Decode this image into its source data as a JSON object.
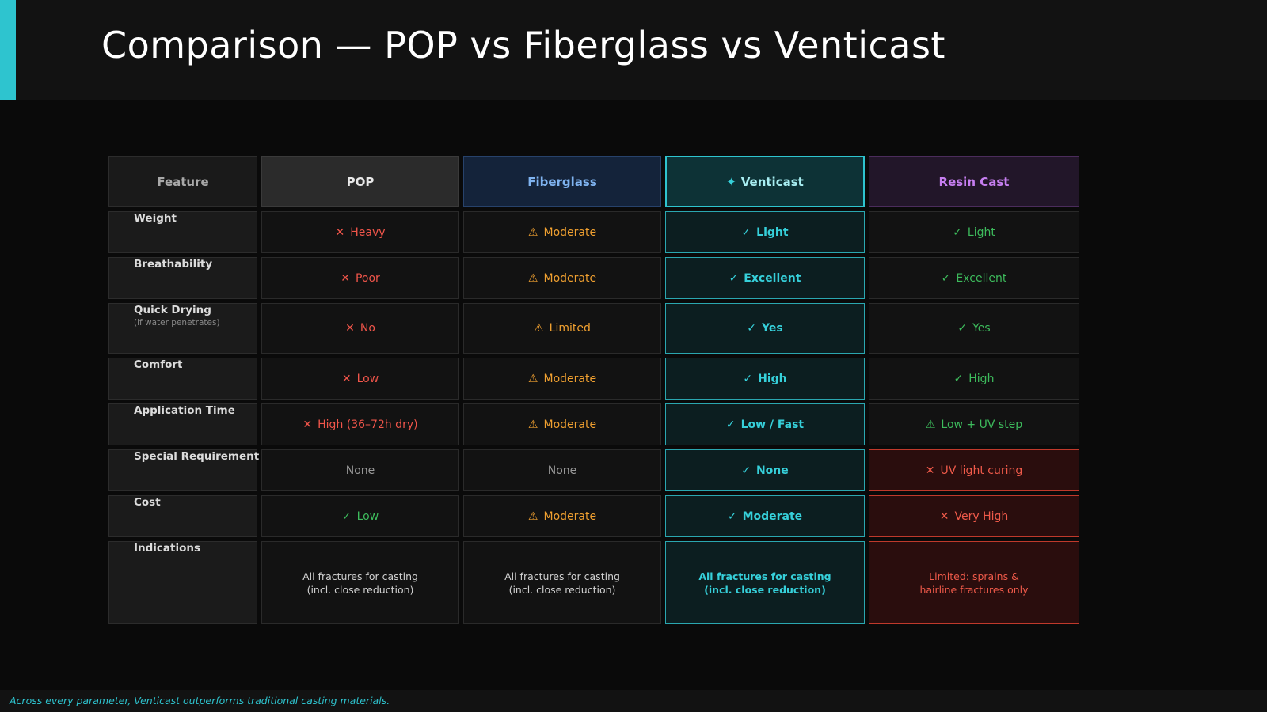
{
  "title": "Comparison — POP vs Fiberglass vs Venticast",
  "footer": "Across every parameter, Venticast outperforms traditional casting materials.",
  "colors": {
    "accent": "#2ec4cf",
    "bad": "#f0554a",
    "warn": "#f0a030",
    "good": "#3dbb5c",
    "venticast": "#36d0da"
  },
  "columns": {
    "feature": "Feature",
    "pop": "POP",
    "fiberglass": "Fiberglass",
    "venticast": "Venticast",
    "resin": "Resin Cast"
  },
  "symbols": {
    "bad": "✕",
    "warn": "⚠",
    "good": "✓",
    "sparkle": "✦"
  },
  "rows": [
    {
      "feature": "Weight",
      "pop": "Heavy",
      "fiberglass": "Moderate",
      "venticast": "Light",
      "resin": "Light"
    },
    {
      "feature": "Breathability",
      "pop": "Poor",
      "fiberglass": "Moderate",
      "venticast": "Excellent",
      "resin": "Excellent"
    },
    {
      "feature": "Quick Drying",
      "feature_sub": "(if water penetrates)",
      "pop": "No",
      "fiberglass": "Limited",
      "venticast": "Yes",
      "resin": "Yes"
    },
    {
      "feature": "Comfort",
      "pop": "Low",
      "fiberglass": "Moderate",
      "venticast": "High",
      "resin": "High"
    },
    {
      "feature": "Application Time",
      "pop": "High (36–72h dry)",
      "fiberglass": "Moderate",
      "venticast": "Low / Fast",
      "resin": "Low + UV step"
    },
    {
      "feature": "Special Requirement",
      "pop": "None",
      "fiberglass": "None",
      "venticast": "None",
      "resin": "UV light curing"
    },
    {
      "feature": "Cost",
      "pop": "Low",
      "fiberglass": "Moderate",
      "venticast": "Moderate",
      "resin": "Very High"
    },
    {
      "feature": "Indications",
      "pop_l1": "All fractures for casting",
      "pop_l2": "(incl. close reduction)",
      "fiberglass_l1": "All fractures for casting",
      "fiberglass_l2": "(incl. close reduction)",
      "venticast_l1": "All fractures for casting",
      "venticast_l2": "(incl. close reduction)",
      "resin_l1": "Limited: sprains &",
      "resin_l2": "hairline fractures only"
    }
  ]
}
